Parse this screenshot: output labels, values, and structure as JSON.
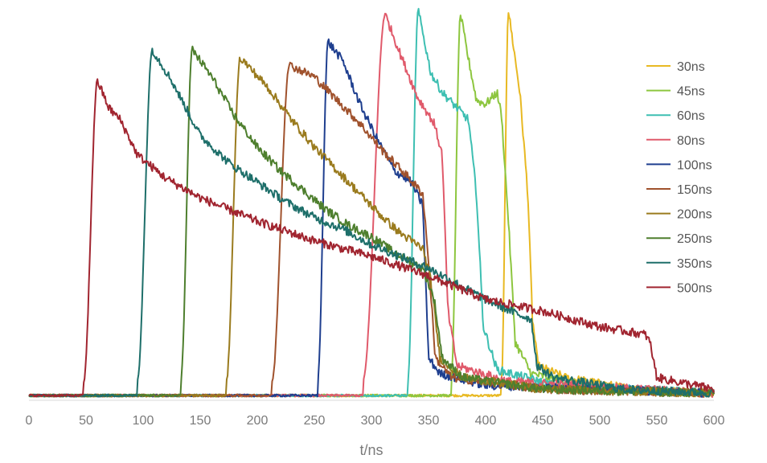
{
  "chart_data": {
    "type": "line",
    "title": "",
    "xlabel": "t/ns",
    "ylabel": "",
    "xlim": [
      0,
      600
    ],
    "ylim": [
      0,
      1.0
    ],
    "x_ticks": [
      0,
      50,
      100,
      150,
      200,
      250,
      300,
      350,
      400,
      450,
      500,
      550,
      600
    ],
    "grid": false,
    "legend_position": "right",
    "series": [
      {
        "name": "30ns",
        "color": "#E8B923",
        "rise": 414,
        "peak_t": 420,
        "peak": 0.99,
        "pts": [
          [
            420,
            0.99
          ],
          [
            430,
            0.78
          ],
          [
            437,
            0.52
          ],
          [
            441,
            0.2
          ],
          [
            446,
            0.08
          ],
          [
            470,
            0.05
          ],
          [
            530,
            0.02
          ],
          [
            600,
            0.01
          ]
        ]
      },
      {
        "name": "45ns",
        "color": "#8DC63F",
        "rise": 370,
        "peak_t": 378,
        "peak": 0.98,
        "pts": [
          [
            378,
            0.98
          ],
          [
            384,
            0.88
          ],
          [
            392,
            0.76
          ],
          [
            400,
            0.75
          ],
          [
            410,
            0.78
          ],
          [
            414,
            0.72
          ],
          [
            420,
            0.45
          ],
          [
            426,
            0.14
          ],
          [
            440,
            0.06
          ],
          [
            500,
            0.02
          ],
          [
            600,
            0.01
          ]
        ]
      },
      {
        "name": "60ns",
        "color": "#3EBFB2",
        "rise": 332,
        "peak_t": 341,
        "peak": 0.99,
        "pts": [
          [
            341,
            0.99
          ],
          [
            352,
            0.83
          ],
          [
            362,
            0.78
          ],
          [
            375,
            0.74
          ],
          [
            385,
            0.71
          ],
          [
            392,
            0.52
          ],
          [
            398,
            0.18
          ],
          [
            410,
            0.07
          ],
          [
            460,
            0.03
          ],
          [
            600,
            0.01
          ]
        ]
      },
      {
        "name": "80ns",
        "color": "#E05A6B",
        "rise": 293,
        "peak_t": 312,
        "peak": 0.98,
        "pts": [
          [
            312,
            0.98
          ],
          [
            325,
            0.88
          ],
          [
            340,
            0.77
          ],
          [
            355,
            0.7
          ],
          [
            362,
            0.62
          ],
          [
            367,
            0.22
          ],
          [
            375,
            0.08
          ],
          [
            420,
            0.04
          ],
          [
            600,
            0.01
          ]
        ]
      },
      {
        "name": "100ns",
        "color": "#1F3F8F",
        "rise": 253,
        "peak_t": 262,
        "peak": 0.91,
        "pts": [
          [
            262,
            0.91
          ],
          [
            275,
            0.86
          ],
          [
            290,
            0.75
          ],
          [
            305,
            0.66
          ],
          [
            320,
            0.58
          ],
          [
            335,
            0.55
          ],
          [
            345,
            0.49
          ],
          [
            350,
            0.1
          ],
          [
            360,
            0.06
          ],
          [
            400,
            0.03
          ],
          [
            600,
            0.01
          ]
        ]
      },
      {
        "name": "150ns",
        "color": "#A0522D",
        "rise": 213,
        "peak_t": 228,
        "peak": 0.85,
        "pts": [
          [
            228,
            0.85
          ],
          [
            250,
            0.82
          ],
          [
            270,
            0.76
          ],
          [
            290,
            0.7
          ],
          [
            310,
            0.63
          ],
          [
            330,
            0.57
          ],
          [
            345,
            0.52
          ],
          [
            350,
            0.35
          ],
          [
            356,
            0.1
          ],
          [
            370,
            0.05
          ],
          [
            450,
            0.02
          ],
          [
            600,
            0.01
          ]
        ]
      },
      {
        "name": "200ns",
        "color": "#9A7B1E",
        "rise": 173,
        "peak_t": 185,
        "peak": 0.87,
        "pts": [
          [
            185,
            0.87
          ],
          [
            210,
            0.79
          ],
          [
            230,
            0.71
          ],
          [
            250,
            0.64
          ],
          [
            270,
            0.58
          ],
          [
            290,
            0.52
          ],
          [
            310,
            0.46
          ],
          [
            325,
            0.42
          ],
          [
            345,
            0.38
          ],
          [
            352,
            0.3
          ],
          [
            360,
            0.1
          ],
          [
            380,
            0.05
          ],
          [
            450,
            0.02
          ],
          [
            600,
            0.01
          ]
        ]
      },
      {
        "name": "250ns",
        "color": "#4E7F2E",
        "rise": 133,
        "peak_t": 143,
        "peak": 0.89,
        "pts": [
          [
            143,
            0.89
          ],
          [
            160,
            0.82
          ],
          [
            180,
            0.72
          ],
          [
            200,
            0.64
          ],
          [
            220,
            0.58
          ],
          [
            240,
            0.53
          ],
          [
            260,
            0.48
          ],
          [
            280,
            0.44
          ],
          [
            300,
            0.41
          ],
          [
            320,
            0.37
          ],
          [
            345,
            0.33
          ],
          [
            355,
            0.25
          ],
          [
            362,
            0.1
          ],
          [
            380,
            0.05
          ],
          [
            450,
            0.02
          ],
          [
            600,
            0.01
          ]
        ]
      },
      {
        "name": "350ns",
        "color": "#1E6F6A",
        "rise": 95,
        "peak_t": 108,
        "peak": 0.89,
        "pts": [
          [
            108,
            0.89
          ],
          [
            125,
            0.81
          ],
          [
            150,
            0.67
          ],
          [
            175,
            0.6
          ],
          [
            200,
            0.55
          ],
          [
            225,
            0.5
          ],
          [
            250,
            0.46
          ],
          [
            275,
            0.43
          ],
          [
            300,
            0.39
          ],
          [
            325,
            0.36
          ],
          [
            350,
            0.33
          ],
          [
            375,
            0.29
          ],
          [
            400,
            0.25
          ],
          [
            430,
            0.21
          ],
          [
            440,
            0.2
          ],
          [
            445,
            0.08
          ],
          [
            460,
            0.05
          ],
          [
            520,
            0.02
          ],
          [
            600,
            0.01
          ]
        ]
      },
      {
        "name": "500ns",
        "color": "#A12530",
        "rise": 48,
        "peak_t": 60,
        "peak": 0.81,
        "pts": [
          [
            60,
            0.81
          ],
          [
            70,
            0.74
          ],
          [
            80,
            0.71
          ],
          [
            95,
            0.62
          ],
          [
            120,
            0.56
          ],
          [
            150,
            0.51
          ],
          [
            200,
            0.45
          ],
          [
            250,
            0.4
          ],
          [
            300,
            0.36
          ],
          [
            350,
            0.31
          ],
          [
            400,
            0.25
          ],
          [
            450,
            0.22
          ],
          [
            500,
            0.18
          ],
          [
            540,
            0.16
          ],
          [
            544,
            0.14
          ],
          [
            550,
            0.05
          ],
          [
            600,
            0.02
          ]
        ]
      }
    ]
  }
}
